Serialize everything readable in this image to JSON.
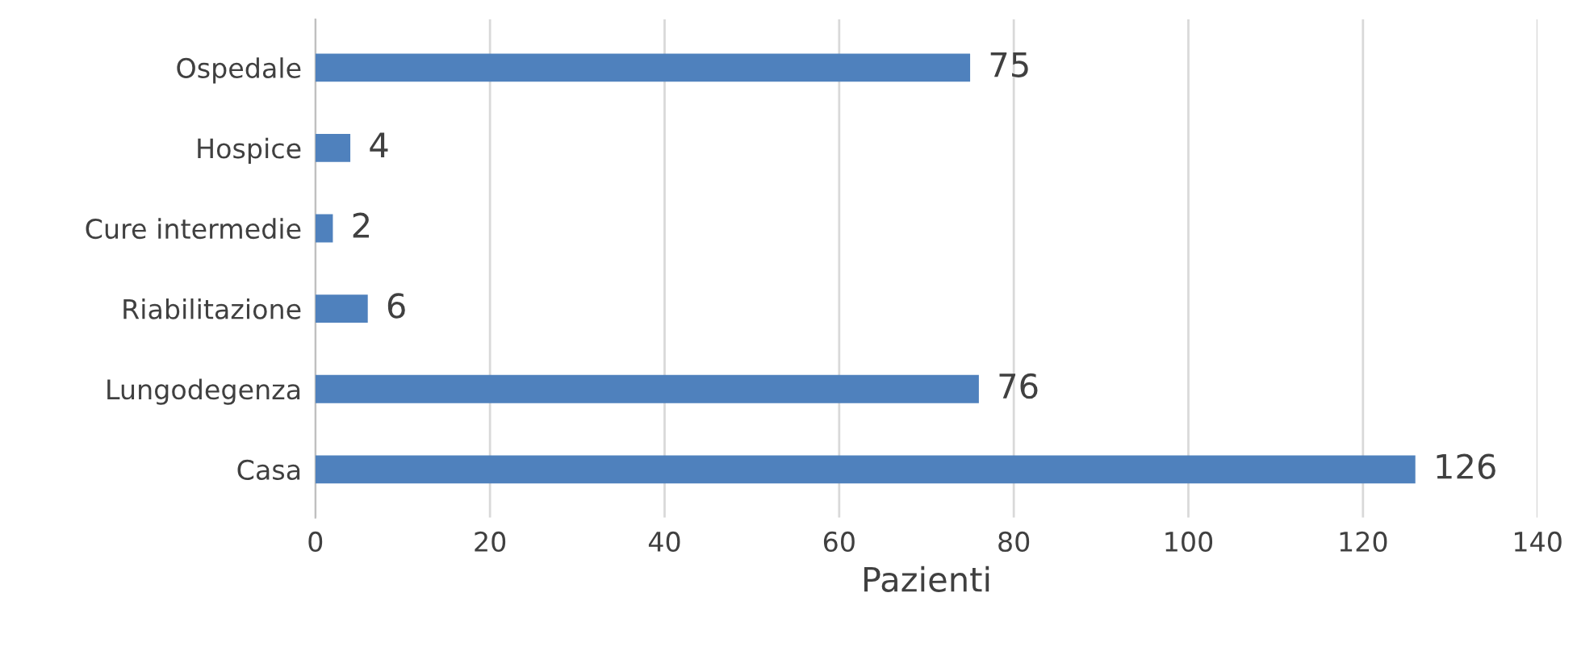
{
  "chart_data": {
    "type": "bar",
    "orientation": "horizontal",
    "categories": [
      "Ospedale",
      "Hospice",
      "Cure intermedie",
      "Riabilitazione",
      "Lungodegenza",
      "Casa"
    ],
    "values": [
      75,
      4,
      2,
      6,
      76,
      126
    ],
    "color": "#4f81bd",
    "xlabel": "Pazienti",
    "xlim": [
      0,
      140
    ],
    "xticks": [
      0,
      20,
      40,
      60,
      80,
      100,
      120,
      140
    ],
    "grid": "x",
    "data_labels": true
  }
}
